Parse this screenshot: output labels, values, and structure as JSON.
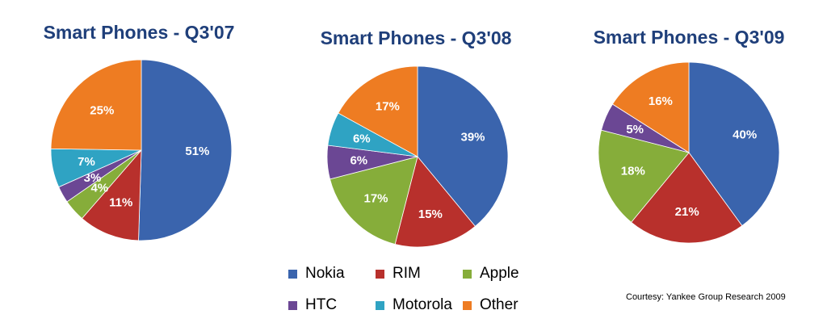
{
  "chart_data": [
    {
      "type": "pie",
      "title": "Smart Phones - Q3'07",
      "slices": [
        {
          "label": "Nokia",
          "value": 51,
          "text": "51%"
        },
        {
          "label": "RIM",
          "value": 11,
          "text": "11%"
        },
        {
          "label": "Apple",
          "value": 4,
          "text": "4%"
        },
        {
          "label": "HTC",
          "value": 3,
          "text": "3%"
        },
        {
          "label": "Motorola",
          "value": 7,
          "text": "7%"
        },
        {
          "label": "Other",
          "value": 25,
          "text": "25%"
        }
      ]
    },
    {
      "type": "pie",
      "title": "Smart Phones - Q3'08",
      "slices": [
        {
          "label": "Nokia",
          "value": 39,
          "text": "39%"
        },
        {
          "label": "RIM",
          "value": 15,
          "text": "15%"
        },
        {
          "label": "Apple",
          "value": 17,
          "text": "17%"
        },
        {
          "label": "HTC",
          "value": 6,
          "text": "6%"
        },
        {
          "label": "Motorola",
          "value": 6,
          "text": "6%"
        },
        {
          "label": "Other",
          "value": 17,
          "text": "17%"
        }
      ]
    },
    {
      "type": "pie",
      "title": "Smart Phones - Q3'09",
      "slices": [
        {
          "label": "Nokia",
          "value": 40,
          "text": "40%"
        },
        {
          "label": "RIM",
          "value": 21,
          "text": "21%"
        },
        {
          "label": "Apple",
          "value": 18,
          "text": "18%"
        },
        {
          "label": "HTC",
          "value": 5,
          "text": "5%"
        },
        {
          "label": "Other",
          "value": 16,
          "text": "16%"
        }
      ]
    }
  ],
  "legend": {
    "placement": "bottom-center",
    "items": [
      {
        "label": "Nokia",
        "color": "#3a64ad"
      },
      {
        "label": "RIM",
        "color": "#b8302c"
      },
      {
        "label": "Apple",
        "color": "#86ad3a"
      },
      {
        "label": "HTC",
        "color": "#6b4794"
      },
      {
        "label": "Motorola",
        "color": "#2fa3c3"
      },
      {
        "label": "Other",
        "color": "#ee7c22"
      }
    ]
  },
  "colors": {
    "Nokia": "#3a64ad",
    "RIM": "#b8302c",
    "Apple": "#86ad3a",
    "HTC": "#6b4794",
    "Motorola": "#2fa3c3",
    "Other": "#ee7c22",
    "title": "#1f3f7a"
  },
  "footer": {
    "courtesy": "Courtesy: Yankee Group Research 2009"
  }
}
